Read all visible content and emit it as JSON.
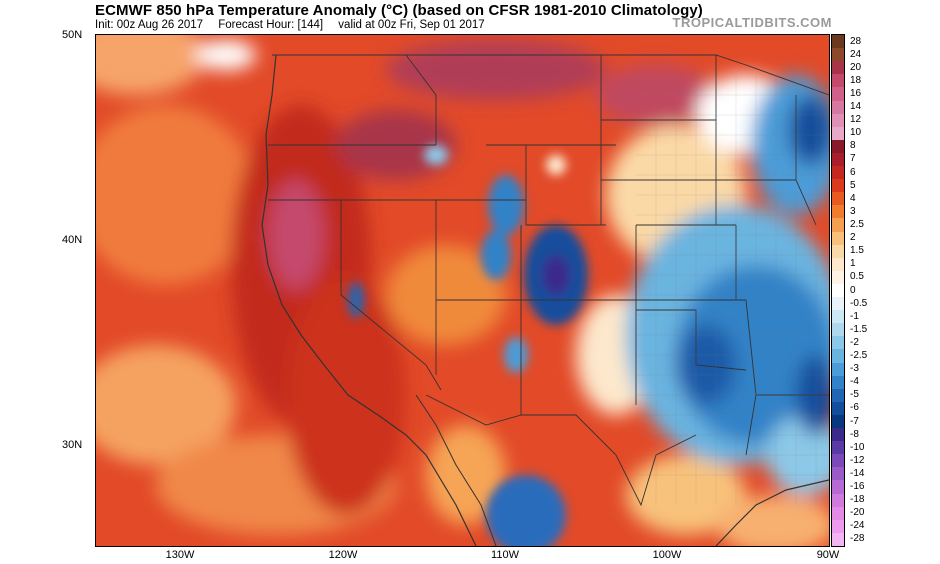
{
  "header": {
    "title": "ECMWF 850 hPa Temperature Anomaly (°C) (based on CFSR 1981-2010 Climatology)",
    "init": "Init: 00z Aug 26 2017",
    "forecast_hour": "Forecast Hour: [144]",
    "valid": "valid at 00z Fri, Sep 01 2017",
    "brand": "TROPICALTIDBITS.COM"
  },
  "axes": {
    "lat_labels": [
      "50N",
      "40N",
      "30N"
    ],
    "lon_labels": [
      "130W",
      "120W",
      "110W",
      "100W",
      "90W"
    ]
  },
  "colorbar": {
    "labels": [
      "28",
      "24",
      "20",
      "18",
      "16",
      "14",
      "12",
      "10",
      "8",
      "7",
      "6",
      "5",
      "4",
      "3",
      "2.5",
      "2",
      "1.5",
      "1",
      "0.5",
      "0",
      "-0.5",
      "-1",
      "-1.5",
      "-2",
      "-2.5",
      "-3",
      "-4",
      "-5",
      "-6",
      "-7",
      "-8",
      "-10",
      "-12",
      "-14",
      "-16",
      "-18",
      "-20",
      "-24",
      "-28"
    ],
    "colors": [
      "#6b3a1e",
      "#8c4a2a",
      "#a8344a",
      "#c44a6c",
      "#d0608a",
      "#d678a0",
      "#e090b4",
      "#e8a8c8",
      "#8a1a2a",
      "#a81e2a",
      "#c4281e",
      "#dc3a1c",
      "#e85a20",
      "#f07c2e",
      "#f4a050",
      "#f8c07a",
      "#fbd9a6",
      "#fde8cc",
      "#fff4e4",
      "#ffffff",
      "#e8f4fa",
      "#cce8f4",
      "#aed8ee",
      "#8cc8e8",
      "#6ab4e0",
      "#4c9cd8",
      "#3282c8",
      "#2066b4",
      "#124e9c",
      "#0a3880",
      "#3a2a8c",
      "#5a3aa4",
      "#7a4ab8",
      "#9a5ac8",
      "#b86ad4",
      "#d07ade",
      "#e28ae6",
      "#ee9aee",
      "#f4b4f4"
    ],
    "unit": "°C"
  },
  "palette": {
    "ocean_warm": "#e0502c",
    "ocean_deep_red": "#c8301c",
    "light_orange": "#f59a55",
    "magenta_warm": "#c44a6c",
    "cool_blue": "#4c9cd8",
    "deep_blue": "#124e9c",
    "pale_blue": "#aed8ee",
    "border_gray": "#555555"
  }
}
